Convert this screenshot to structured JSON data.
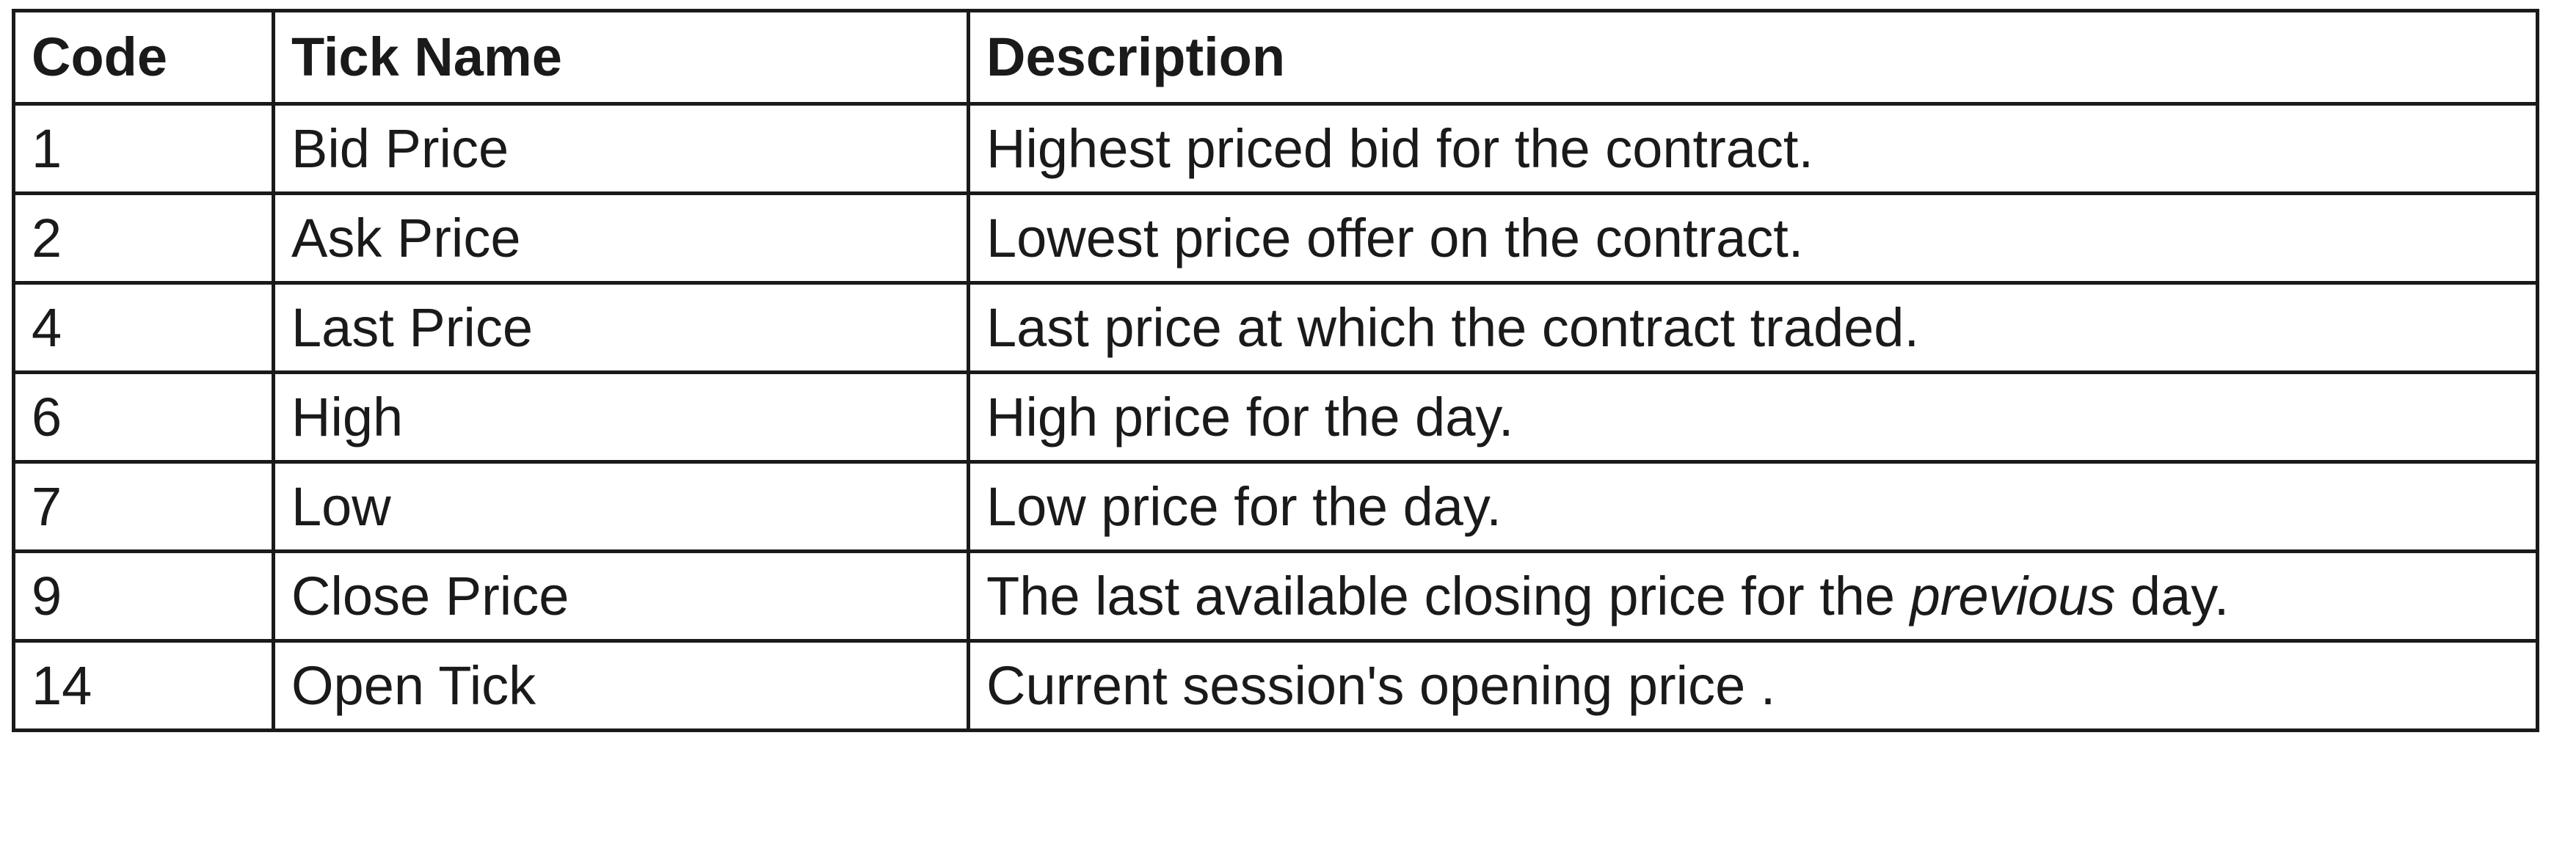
{
  "table": {
    "headers": [
      "Code",
      "Tick Name",
      "Description"
    ],
    "rows": [
      {
        "code": "1",
        "name": "Bid Price",
        "description": "Highest priced bid for the contract."
      },
      {
        "code": "2",
        "name": "Ask Price",
        "description": "Lowest price offer on the contract."
      },
      {
        "code": "4",
        "name": "Last Price",
        "description": "Last price at which the contract traded."
      },
      {
        "code": "6",
        "name": "High",
        "description": "High price for the day."
      },
      {
        "code": "7",
        "name": "Low",
        "description": "Low price for the day."
      },
      {
        "code": "9",
        "name": "Close Price",
        "description_parts": {
          "before": "The last available closing price for the ",
          "italic": "previous",
          "after": " day."
        }
      },
      {
        "code": "14",
        "name": "Open Tick",
        "description": "Current session's opening price ."
      }
    ]
  }
}
